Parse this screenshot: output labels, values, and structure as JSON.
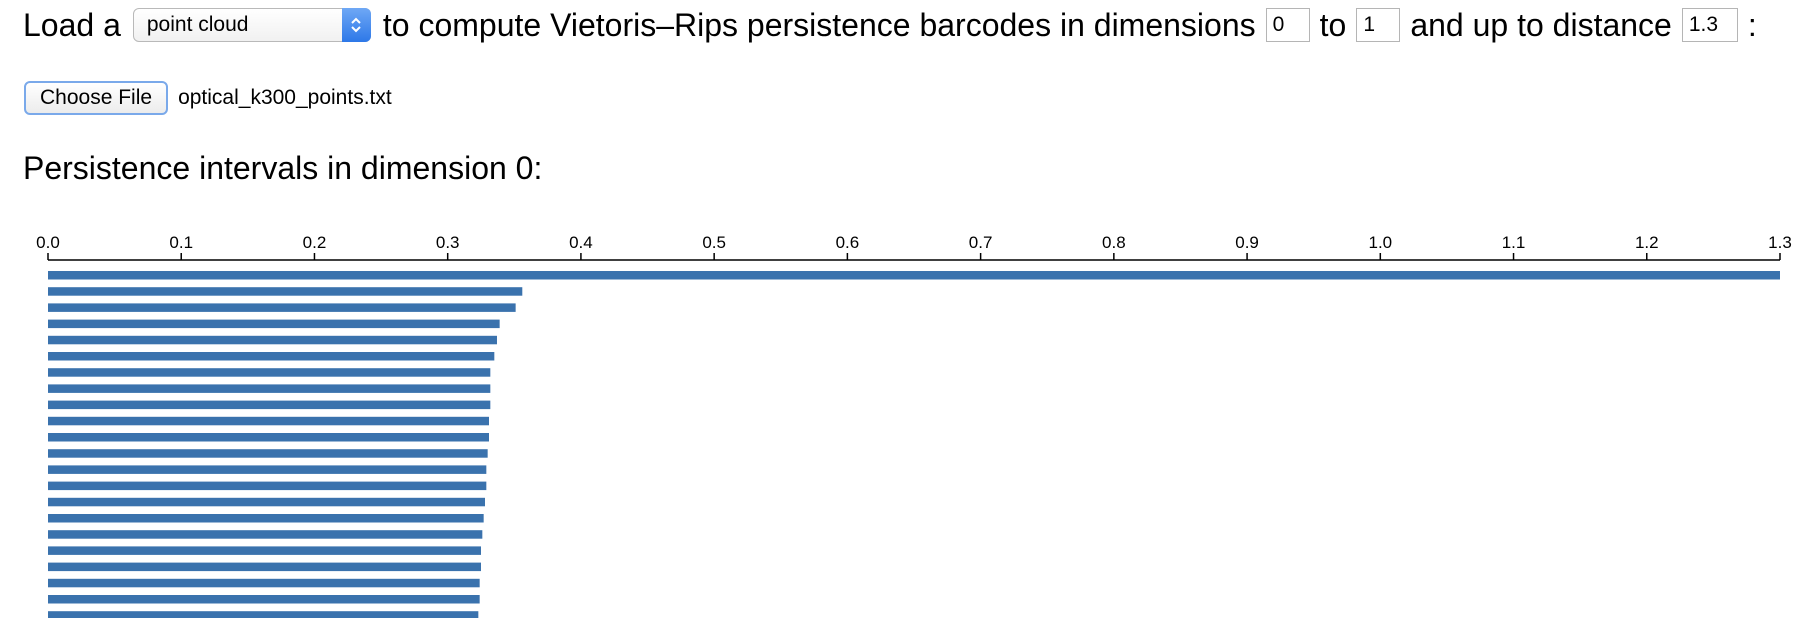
{
  "controls": {
    "prefix": "Load a",
    "source_select": "point cloud",
    "middle_text": "to compute Vietoris–Rips persistence barcodes in dimensions",
    "dim_min": "0",
    "to_text": "to",
    "dim_max": "1",
    "distance_text": "and up to distance",
    "max_distance": "1.3",
    "colon": ":"
  },
  "file": {
    "button_label": "Choose File",
    "file_name": "optical_k300_points.txt"
  },
  "section": {
    "heading": "Persistence intervals in dimension 0:"
  },
  "chart_data": {
    "type": "bar",
    "orientation": "horizontal-barcode",
    "dimension": 0,
    "x_axis_position": "top",
    "xlim": [
      0,
      1.3
    ],
    "ticks": [
      "0.0",
      "0.1",
      "0.2",
      "0.3",
      "0.4",
      "0.5",
      "0.6",
      "0.7",
      "0.8",
      "0.9",
      "1.0",
      "1.1",
      "1.2",
      "1.3"
    ],
    "bar_color": "#3a72ad",
    "intervals": [
      [
        0,
        1.3
      ],
      [
        0,
        0.356
      ],
      [
        0,
        0.351
      ],
      [
        0,
        0.339
      ],
      [
        0,
        0.337
      ],
      [
        0,
        0.335
      ],
      [
        0,
        0.332
      ],
      [
        0,
        0.332
      ],
      [
        0,
        0.332
      ],
      [
        0,
        0.331
      ],
      [
        0,
        0.331
      ],
      [
        0,
        0.33
      ],
      [
        0,
        0.329
      ],
      [
        0,
        0.329
      ],
      [
        0,
        0.328
      ],
      [
        0,
        0.327
      ],
      [
        0,
        0.326
      ],
      [
        0,
        0.325
      ],
      [
        0,
        0.325
      ],
      [
        0,
        0.324
      ],
      [
        0,
        0.324
      ],
      [
        0,
        0.323
      ]
    ]
  }
}
